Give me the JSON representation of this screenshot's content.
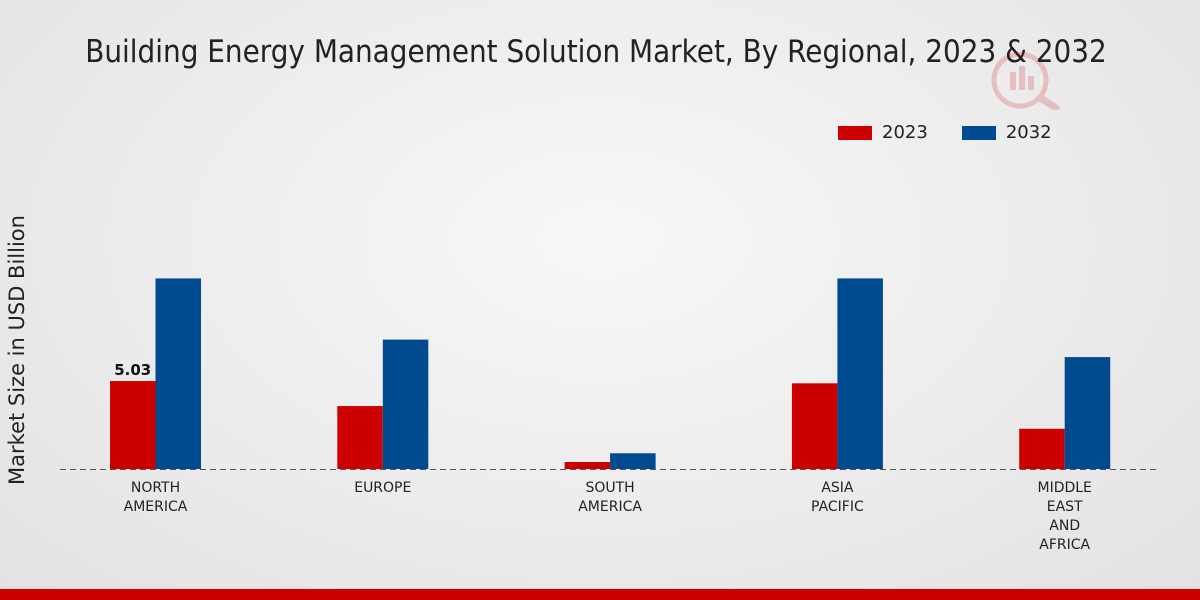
{
  "chart_data": {
    "type": "bar",
    "title": "Building Energy Management Solution Market, By Regional, 2023 & 2032",
    "ylabel": "Market Size in USD Billion",
    "xlabel": "",
    "categories": [
      "NORTH\nAMERICA",
      "EUROPE",
      "SOUTH\nAMERICA",
      "ASIA\nPACIFIC",
      "MIDDLE\nEAST\nAND\nAFRICA"
    ],
    "series": [
      {
        "name": "2023",
        "color": "#cc0000",
        "values": [
          5.03,
          3.6,
          0.4,
          4.9,
          2.3
        ]
      },
      {
        "name": "2032",
        "color": "#004a8f",
        "values": [
          10.9,
          7.4,
          0.9,
          10.9,
          6.4
        ]
      }
    ],
    "data_labels": [
      {
        "series": 0,
        "index": 0,
        "text": "5.03"
      }
    ],
    "ylim": [
      0,
      17.5
    ],
    "grid": false,
    "legend_position": "top-right"
  }
}
